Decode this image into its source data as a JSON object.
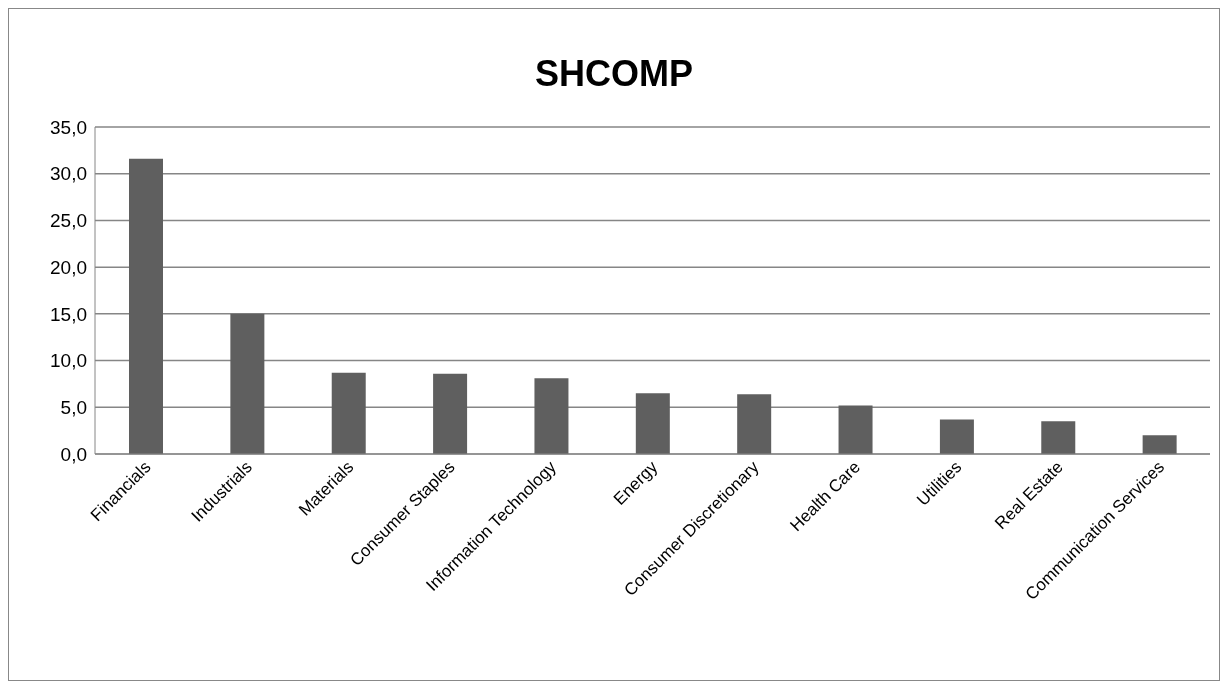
{
  "chart_data": {
    "type": "bar",
    "title": "SHCOMP",
    "categories": [
      "Financials",
      "Industrials",
      "Materials",
      "Consumer Staples",
      "Information Technology",
      "Energy",
      "Consumer Discretionary",
      "Health Care",
      "Utilities",
      "Real Estate",
      "Communication Services"
    ],
    "values": [
      31.6,
      15.0,
      8.7,
      8.6,
      8.1,
      6.5,
      6.4,
      5.2,
      3.7,
      3.5,
      2.0
    ],
    "color": "#5f5f5f",
    "ylim": [
      0,
      35
    ],
    "yticks": [
      {
        "value": 0,
        "label": "0,0"
      },
      {
        "value": 5,
        "label": "5,0"
      },
      {
        "value": 10,
        "label": "10,0"
      },
      {
        "value": 15,
        "label": "15,0"
      },
      {
        "value": 20,
        "label": "20,0"
      },
      {
        "value": 25,
        "label": "25,0"
      },
      {
        "value": 30,
        "label": "30,0"
      },
      {
        "value": 35,
        "label": "35,0"
      }
    ],
    "grid": "y",
    "legend": false
  }
}
